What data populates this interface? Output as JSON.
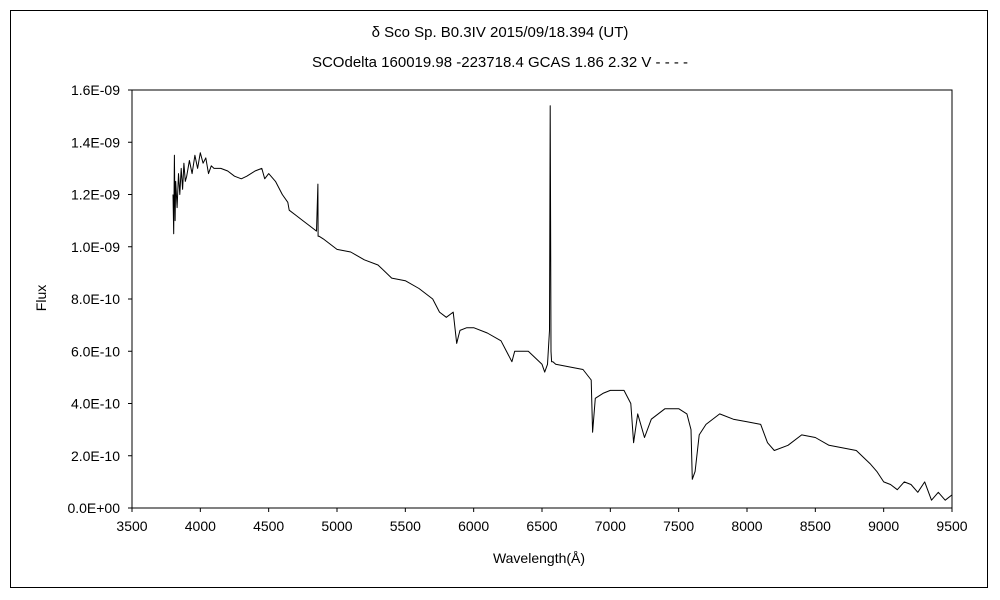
{
  "chart_data": {
    "type": "line",
    "title": "δ Sco    Sp. B0.3IV    2015/09/18.394 (UT)",
    "subtitle": "SCOdelta 160019.98 -223718.4 GCAS 1.86 2.32 V - - - -",
    "xlabel": "Wavelength(Å)",
    "ylabel": "Flux",
    "xlim": [
      3500,
      9500
    ],
    "ylim": [
      0,
      1.6e-09
    ],
    "xticks": [
      3500,
      4000,
      4500,
      5000,
      5500,
      6000,
      6500,
      7000,
      7500,
      8000,
      8500,
      9000,
      9500
    ],
    "xtick_labels": [
      "3500",
      "4000",
      "4500",
      "5000",
      "5500",
      "6000",
      "6500",
      "7000",
      "7500",
      "8000",
      "8500",
      "9000",
      "9500"
    ],
    "yticks": [
      0,
      2e-10,
      4e-10,
      6e-10,
      8e-10,
      1e-09,
      1.2e-09,
      1.4e-09,
      1.6e-09
    ],
    "ytick_labels": [
      "0.0E+00",
      "2.0E-10",
      "4.0E-10",
      "6.0E-10",
      "8.0E-10",
      "1.0E-09",
      "1.2E-09",
      "1.4E-09",
      "1.6E-09"
    ],
    "grid": false,
    "legend": "none",
    "series_color": "#000000",
    "series": [
      {
        "x": [
          3800,
          3805,
          3810,
          3815,
          3820,
          3830,
          3840,
          3850,
          3860,
          3870,
          3880,
          3890,
          3900,
          3920,
          3940,
          3960,
          3980,
          4000,
          4020,
          4040,
          4060,
          4080,
          4100,
          4150,
          4200,
          4250,
          4300,
          4340,
          4400,
          4450,
          4471,
          4500,
          4550,
          4600,
          4640,
          4650,
          4700,
          4750,
          4800,
          4850,
          4860,
          4862,
          4865,
          4870,
          4900,
          5000,
          5100,
          5200,
          5300,
          5400,
          5500,
          5600,
          5700,
          5750,
          5800,
          5850,
          5876,
          5890,
          5900,
          5950,
          6000,
          6100,
          6200,
          6280,
          6300,
          6400,
          6500,
          6520,
          6540,
          6555,
          6560,
          6563,
          6566,
          6570,
          6580,
          6600,
          6700,
          6800,
          6860,
          6870,
          6890,
          6950,
          7000,
          7100,
          7150,
          7170,
          7200,
          7250,
          7300,
          7400,
          7500,
          7560,
          7590,
          7600,
          7620,
          7650,
          7700,
          7800,
          7900,
          8000,
          8100,
          8150,
          8200,
          8300,
          8400,
          8500,
          8600,
          8700,
          8800,
          8900,
          8950,
          9000,
          9050,
          9100,
          9150,
          9200,
          9250,
          9300,
          9350,
          9400,
          9450,
          9500
        ],
        "y": [
          1.2e-09,
          1.05e-09,
          1.35e-09,
          1.1e-09,
          1.25e-09,
          1.15e-09,
          1.28e-09,
          1.2e-09,
          1.3e-09,
          1.22e-09,
          1.32e-09,
          1.25e-09,
          1.27e-09,
          1.33e-09,
          1.28e-09,
          1.35e-09,
          1.3e-09,
          1.36e-09,
          1.32e-09,
          1.34e-09,
          1.28e-09,
          1.31e-09,
          1.3e-09,
          1.3e-09,
          1.29e-09,
          1.27e-09,
          1.26e-09,
          1.27e-09,
          1.29e-09,
          1.3e-09,
          1.26e-09,
          1.28e-09,
          1.25e-09,
          1.2e-09,
          1.17e-09,
          1.14e-09,
          1.12e-09,
          1.1e-09,
          1.08e-09,
          1.06e-09,
          1.24e-09,
          1.04e-09,
          1.04e-09,
          1.04e-09,
          1.03e-09,
          9.9e-10,
          9.8e-10,
          9.5e-10,
          9.3e-10,
          8.8e-10,
          8.7e-10,
          8.4e-10,
          8e-10,
          7.5e-10,
          7.3e-10,
          7.5e-10,
          6.3e-10,
          6.6e-10,
          6.8e-10,
          6.9e-10,
          6.9e-10,
          6.7e-10,
          6.4e-10,
          5.6e-10,
          6e-10,
          6e-10,
          5.5e-10,
          5.2e-10,
          5.5e-10,
          6.8e-10,
          1.54e-09,
          1.1e-09,
          6e-10,
          5.6e-10,
          5.6e-10,
          5.5e-10,
          5.4e-10,
          5.3e-10,
          4.9e-10,
          2.9e-10,
          4.2e-10,
          4.4e-10,
          4.5e-10,
          4.5e-10,
          4e-10,
          2.5e-10,
          3.6e-10,
          2.7e-10,
          3.4e-10,
          3.8e-10,
          3.8e-10,
          3.6e-10,
          3e-10,
          1.1e-10,
          1.4e-10,
          2.8e-10,
          3.2e-10,
          3.6e-10,
          3.4e-10,
          3.3e-10,
          3.2e-10,
          2.5e-10,
          2.2e-10,
          2.4e-10,
          2.8e-10,
          2.7e-10,
          2.4e-10,
          2.3e-10,
          2.2e-10,
          1.7e-10,
          1.4e-10,
          1e-10,
          9e-11,
          7e-11,
          1e-10,
          9e-11,
          6e-11,
          1e-10,
          3e-11,
          6e-11,
          3e-11,
          5e-11
        ]
      }
    ]
  }
}
